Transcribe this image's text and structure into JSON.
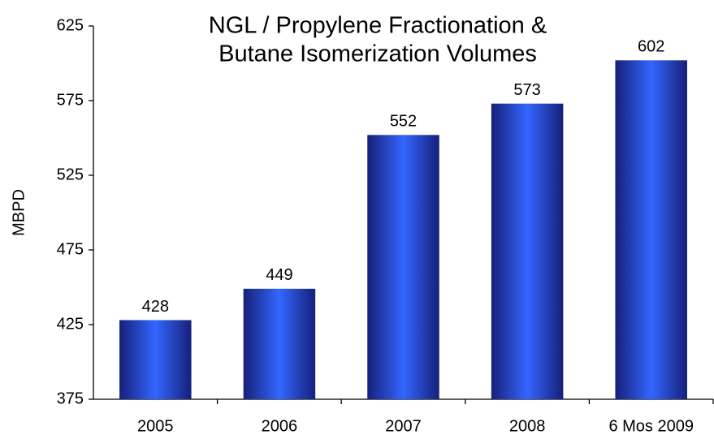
{
  "chart_data": {
    "type": "bar",
    "title": [
      "NGL / Propylene Fractionation &",
      "Butane Isomerization Volumes"
    ],
    "y_label": "MBPD",
    "categories": [
      "2005",
      "2006",
      "2007",
      "2008",
      "6 Mos 2009"
    ],
    "values": [
      428,
      449,
      552,
      573,
      602
    ],
    "color": "#3366ff",
    "ylim": [
      375,
      625
    ],
    "yticks": [
      375,
      425,
      475,
      525,
      575,
      625
    ],
    "grid": false
  }
}
